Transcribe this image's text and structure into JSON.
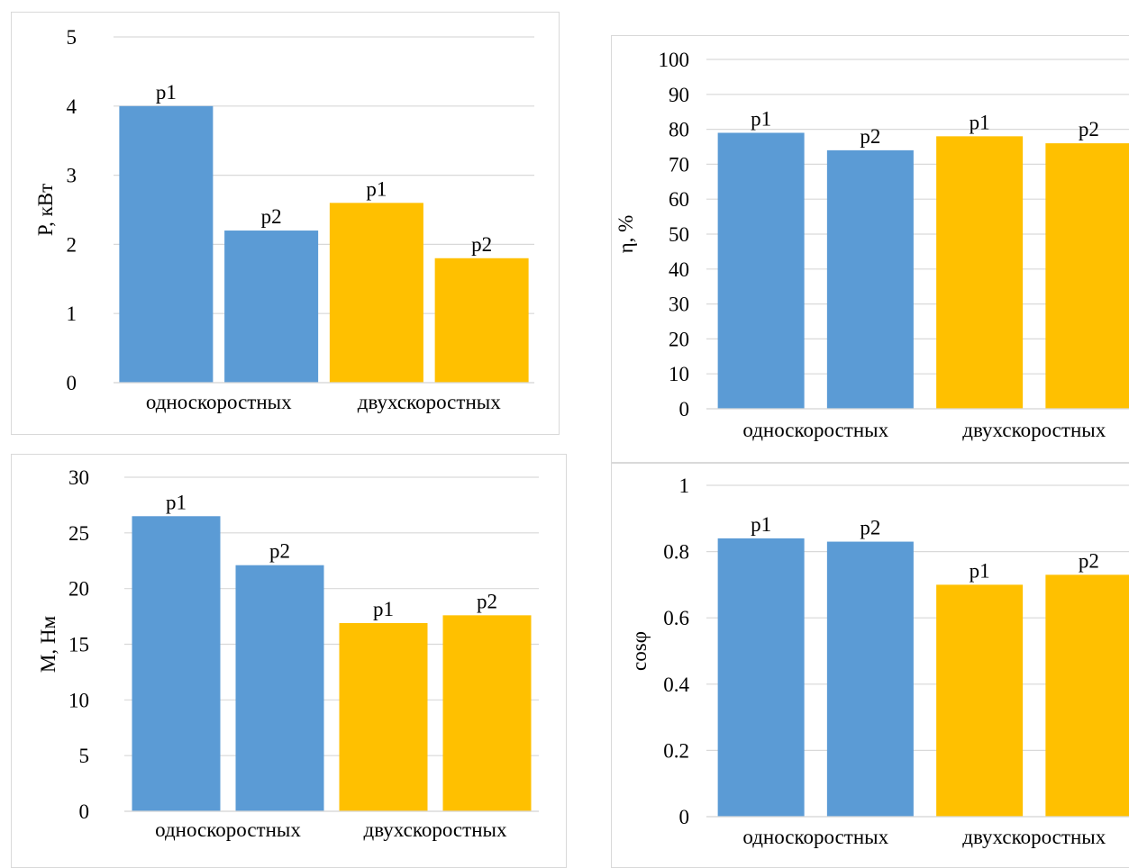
{
  "charts_layout": [
    "power",
    "efficiency",
    "torque",
    "power_factor"
  ],
  "chart_data": [
    {
      "id": "power",
      "type": "bar",
      "ylabel": "P, кВт",
      "ylim": [
        0,
        5
      ],
      "yticks": [
        "0",
        "1",
        "2",
        "3",
        "4",
        "5"
      ],
      "groups": [
        "односкоростных",
        "двухскоростных"
      ],
      "bars": [
        {
          "group": 0,
          "label": "p1",
          "value": 4.0,
          "color": "#5b9bd5"
        },
        {
          "group": 0,
          "label": "p2",
          "value": 2.2,
          "color": "#5b9bd5"
        },
        {
          "group": 1,
          "label": "p1",
          "value": 2.6,
          "color": "#ffc000"
        },
        {
          "group": 1,
          "label": "p2",
          "value": 1.8,
          "color": "#ffc000"
        }
      ],
      "grid": true
    },
    {
      "id": "efficiency",
      "type": "bar",
      "ylabel": "η, %",
      "ylim": [
        0,
        100
      ],
      "yticks": [
        "0",
        "10",
        "20",
        "30",
        "40",
        "50",
        "60",
        "70",
        "80",
        "90",
        "100"
      ],
      "groups": [
        "односкоростных",
        "двухскоростных"
      ],
      "bars": [
        {
          "group": 0,
          "label": "p1",
          "value": 79,
          "color": "#5b9bd5"
        },
        {
          "group": 0,
          "label": "p2",
          "value": 74,
          "color": "#5b9bd5"
        },
        {
          "group": 1,
          "label": "p1",
          "value": 78,
          "color": "#ffc000"
        },
        {
          "group": 1,
          "label": "p2",
          "value": 76,
          "color": "#ffc000"
        }
      ],
      "grid": true
    },
    {
      "id": "torque",
      "type": "bar",
      "ylabel": "M, Нм",
      "ylim": [
        0,
        30
      ],
      "yticks": [
        "0",
        "5",
        "10",
        "15",
        "20",
        "25",
        "30"
      ],
      "groups": [
        "односкоростных",
        "двухскоростных"
      ],
      "bars": [
        {
          "group": 0,
          "label": "p1",
          "value": 26.5,
          "color": "#5b9bd5"
        },
        {
          "group": 0,
          "label": "p2",
          "value": 22.1,
          "color": "#5b9bd5"
        },
        {
          "group": 1,
          "label": "p1",
          "value": 16.9,
          "color": "#ffc000"
        },
        {
          "group": 1,
          "label": "p2",
          "value": 17.6,
          "color": "#ffc000"
        }
      ],
      "grid": true
    },
    {
      "id": "power_factor",
      "type": "bar",
      "ylabel": "cosφ",
      "ylim": [
        0,
        1
      ],
      "yticks": [
        "0",
        "0.2",
        "0.4",
        "0.6",
        "0.8",
        "1"
      ],
      "groups": [
        "односкоростных",
        "двухскоростных"
      ],
      "bars": [
        {
          "group": 0,
          "label": "p1",
          "value": 0.84,
          "color": "#5b9bd5"
        },
        {
          "group": 0,
          "label": "p2",
          "value": 0.83,
          "color": "#5b9bd5"
        },
        {
          "group": 1,
          "label": "p1",
          "value": 0.7,
          "color": "#ffc000"
        },
        {
          "group": 1,
          "label": "p2",
          "value": 0.73,
          "color": "#ffc000"
        }
      ],
      "grid": true
    }
  ]
}
